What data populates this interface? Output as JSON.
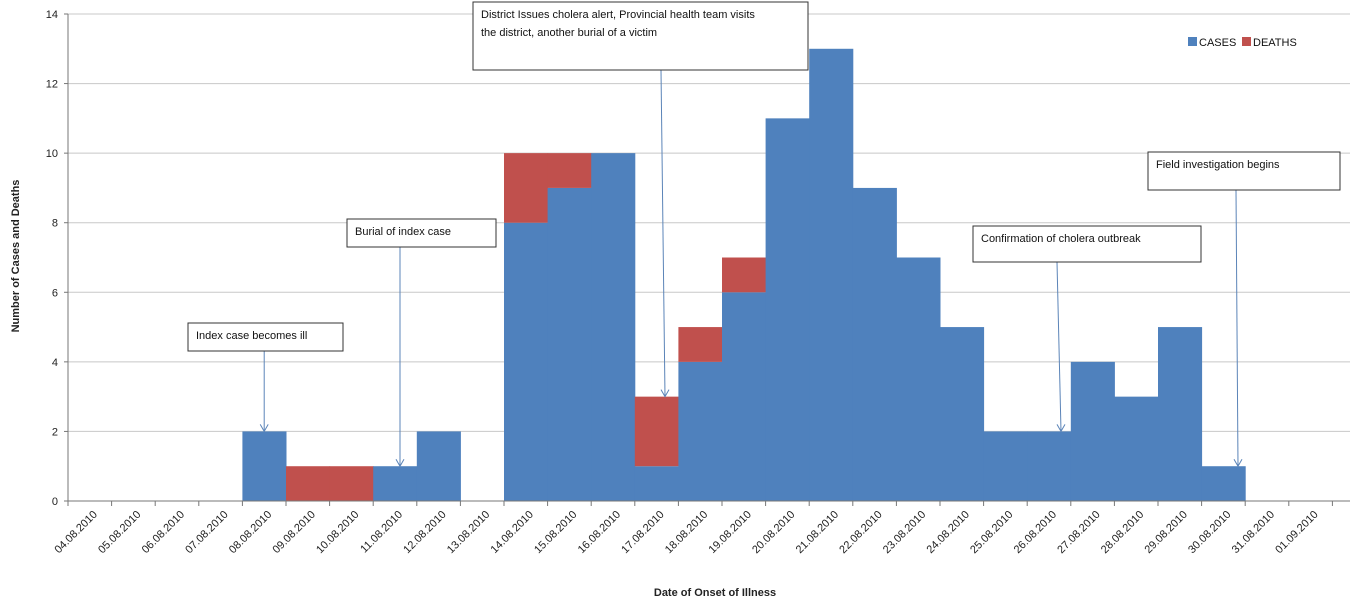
{
  "chart_data": {
    "type": "bar",
    "stacked": true,
    "title": "",
    "xlabel": "Date of Onset of Illness",
    "ylabel": "Number of Cases and Deaths",
    "ylim": [
      0,
      14
    ],
    "yticks": [
      0,
      2,
      4,
      6,
      8,
      10,
      12,
      14
    ],
    "grid": "horizontal",
    "legend_position": "top-right",
    "categories": [
      "04.08.2010",
      "05.08.2010",
      "06.08.2010",
      "07.08.2010",
      "08.08.2010",
      "09.08.2010",
      "10.08.2010",
      "11.08.2010",
      "12.08.2010",
      "13.08.2010",
      "14.08.2010",
      "15.08.2010",
      "16.08.2010",
      "17.08.2010",
      "18.08.2010",
      "19.08.2010",
      "20.08.2010",
      "21.08.2010",
      "22.08.2010",
      "23.08.2010",
      "24.08.2010",
      "25.08.2010",
      "26.08.2010",
      "27.08.2010",
      "28.08.2010",
      "29.08.2010",
      "30.08.2010",
      "31.08.2010",
      "01.09.2010"
    ],
    "series": [
      {
        "name": "CASES",
        "color": "#4F81BD",
        "values": [
          0,
          0,
          0,
          0,
          2,
          0,
          0,
          1,
          2,
          0,
          8,
          9,
          10,
          1,
          4,
          6,
          11,
          13,
          9,
          7,
          5,
          2,
          2,
          4,
          3,
          5,
          1,
          0,
          0
        ]
      },
      {
        "name": "DEATHS",
        "color": "#C0504D",
        "values": [
          0,
          0,
          0,
          0,
          0,
          1,
          1,
          0,
          0,
          0,
          2,
          1,
          0,
          2,
          1,
          1,
          0,
          0,
          0,
          0,
          0,
          0,
          0,
          0,
          0,
          0,
          0,
          0,
          0
        ]
      }
    ],
    "annotations": [
      {
        "lines": [
          "Index case becomes ill"
        ],
        "category": "08.08.2010",
        "value": 2
      },
      {
        "lines": [
          "Burial of index case"
        ],
        "category": "11.08.2010",
        "value": 1
      },
      {
        "lines": [
          "District Issues cholera alert, Provincial health team visits",
          "the district, another burial of a victim"
        ],
        "category": "17.08.2010",
        "value": 3
      },
      {
        "lines": [
          "Confirmation of cholera outbreak"
        ],
        "category": "26.08.2010",
        "value": 2
      },
      {
        "lines": [
          "Field investigation begins"
        ],
        "category": "30.08.2010",
        "value": 1
      }
    ]
  }
}
